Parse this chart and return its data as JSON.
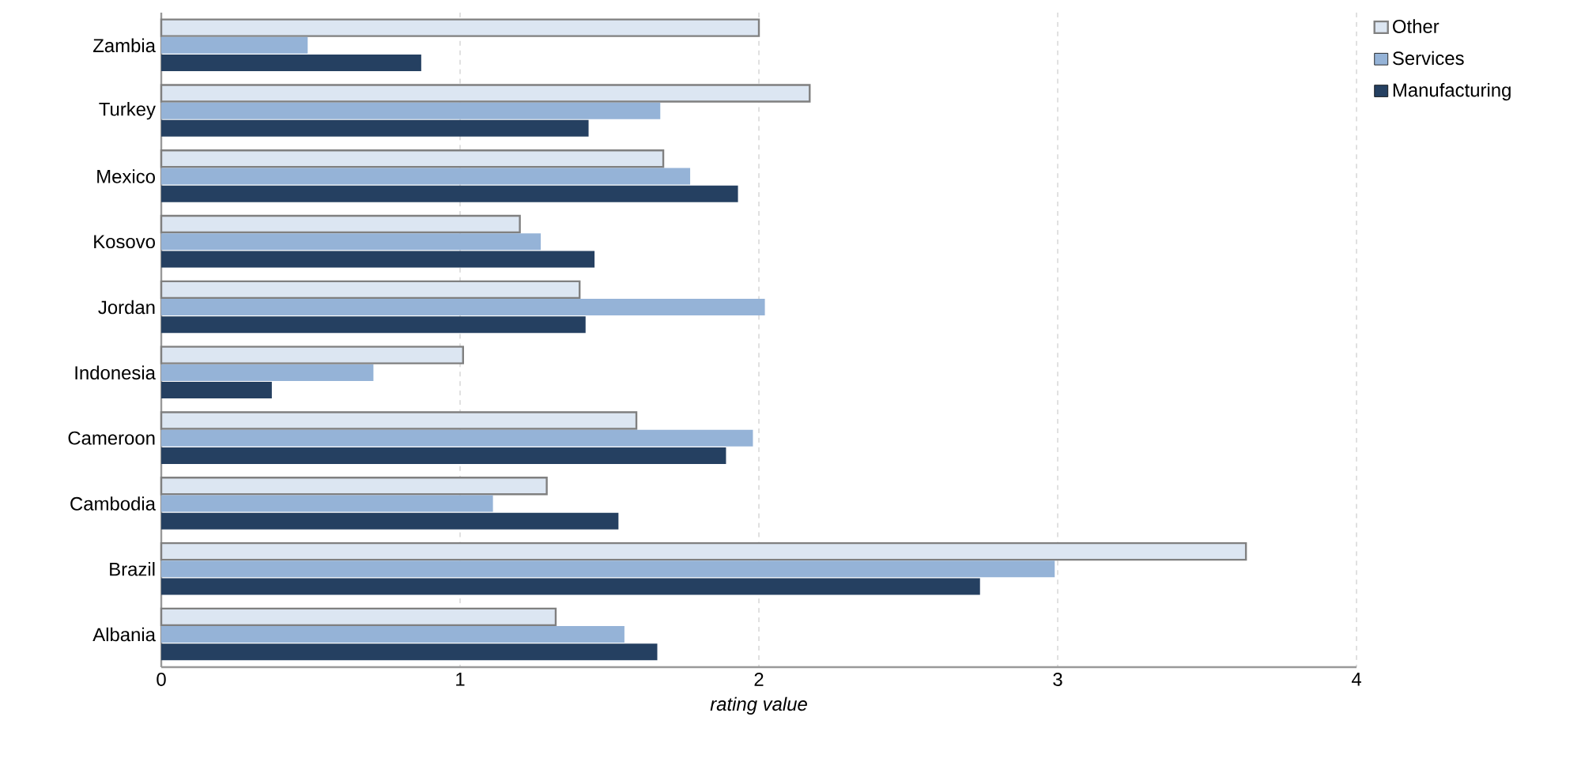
{
  "chart_data": {
    "type": "bar",
    "orientation": "horizontal",
    "xlabel": "rating value",
    "categories": [
      "Zambia",
      "Turkey",
      "Mexico",
      "Kosovo",
      "Jordan",
      "Indonesia",
      "Cameroon",
      "Cambodia",
      "Brazil",
      "Albania"
    ],
    "series": [
      {
        "name": "Other",
        "color": "#dce6f2",
        "values": [
          2.0,
          2.17,
          1.68,
          1.2,
          1.4,
          1.01,
          1.59,
          1.29,
          3.63,
          1.32
        ]
      },
      {
        "name": "Services",
        "color": "#95b3d7",
        "values": [
          0.49,
          1.67,
          1.77,
          1.27,
          2.02,
          0.71,
          1.98,
          1.11,
          2.99,
          1.55
        ]
      },
      {
        "name": "Manufacturing",
        "color": "#254061",
        "values": [
          0.87,
          1.43,
          1.93,
          1.45,
          1.42,
          0.37,
          1.89,
          1.53,
          2.74,
          1.66
        ]
      }
    ],
    "xlim": [
      0,
      4
    ],
    "xticks": [
      0,
      1,
      2,
      3,
      4
    ],
    "grid": "x",
    "legend": "top right"
  }
}
